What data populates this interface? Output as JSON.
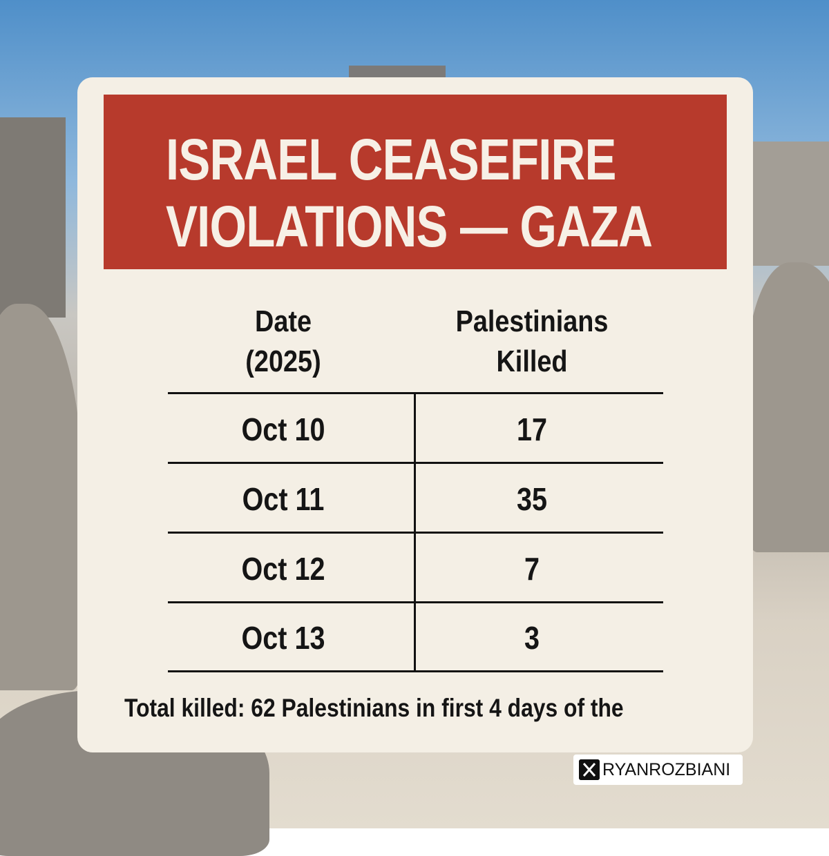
{
  "header": {
    "title_lines": [
      "ISRAEL CEASEFIRE",
      "VIOLATIONS — GAZA"
    ]
  },
  "table": {
    "columns": [
      "Date (2025)",
      "Palestinians Killed"
    ],
    "rows": [
      [
        "Oct 10",
        17
      ],
      [
        "Oct 11",
        35
      ],
      [
        "Oct 12",
        7
      ],
      [
        "Oct 13",
        3
      ]
    ]
  },
  "footer": "Total killed: 62 Palestinians in first 4 days of the",
  "watermark": "RYANROZBIANI"
}
